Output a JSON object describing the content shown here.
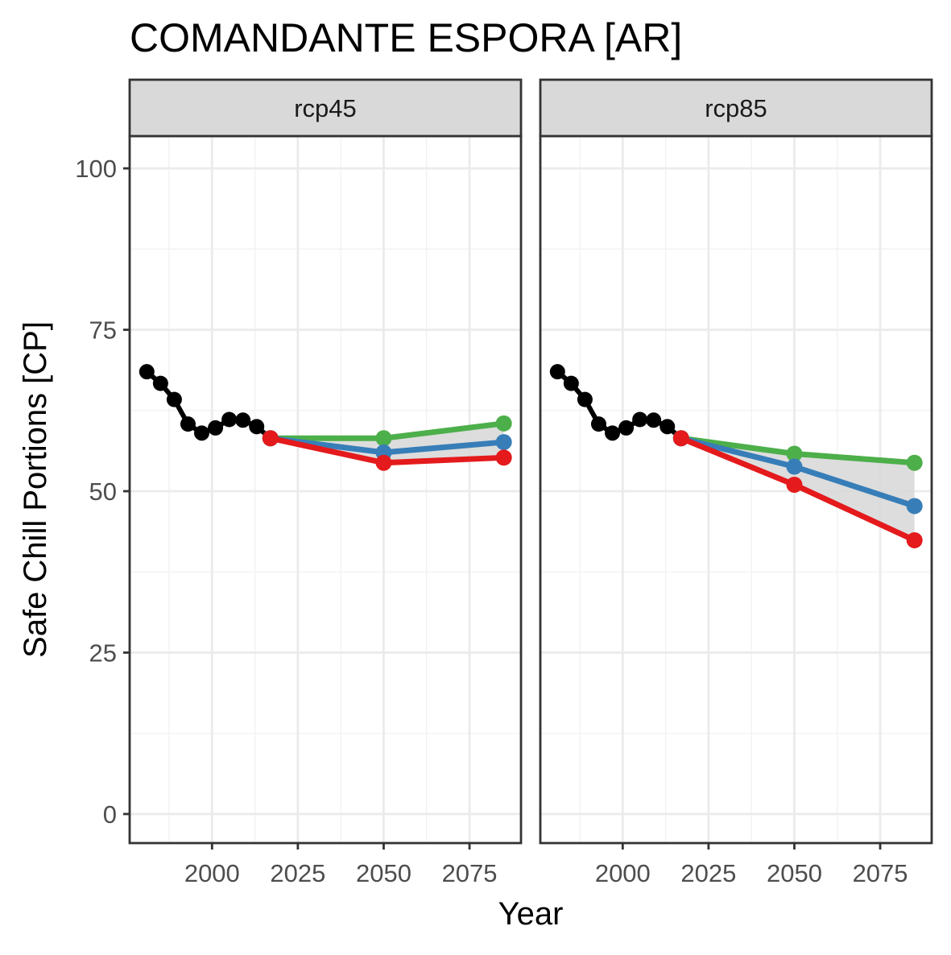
{
  "chart_data": {
    "type": "line",
    "title": "COMANDANTE ESPORA [AR]",
    "xlabel": "Year",
    "ylabel": "Safe Chill Portions [CP]",
    "xlim": [
      1976,
      2090
    ],
    "ylim": [
      -4.5,
      105
    ],
    "x_ticks": [
      2000,
      2025,
      2050,
      2075
    ],
    "x_tick_labels": [
      "2000",
      "2025",
      "2050",
      "2075"
    ],
    "y_ticks": [
      0,
      25,
      50,
      75,
      100
    ],
    "y_tick_labels": [
      "0",
      "25",
      "50",
      "75",
      "100"
    ],
    "grid": true,
    "legend": "none",
    "colors": {
      "historic": "#000000",
      "green": "#4daf4a",
      "blue": "#377eb8",
      "red": "#e41a1c",
      "ribbon": "#d9d9d9"
    },
    "panels": [
      {
        "label": "rcp45",
        "historic": {
          "x": [
            1981,
            1985,
            1989,
            1993,
            1997,
            2001,
            2005,
            2009,
            2013,
            2017
          ],
          "y": [
            68.5,
            66.7,
            64.2,
            60.4,
            59.0,
            59.8,
            61.1,
            61.0,
            60.0,
            58.2
          ]
        },
        "scenarios": [
          {
            "color": "green",
            "x": [
              2017,
              2050,
              2085
            ],
            "y": [
              58.2,
              58.2,
              60.5
            ]
          },
          {
            "color": "blue",
            "x": [
              2017,
              2050,
              2085
            ],
            "y": [
              58.2,
              56.0,
              57.6
            ]
          },
          {
            "color": "red",
            "x": [
              2017,
              2050,
              2085
            ],
            "y": [
              58.2,
              54.4,
              55.2
            ]
          }
        ],
        "ribbon": {
          "x": [
            2017,
            2050,
            2085
          ],
          "ymin": [
            58.2,
            54.4,
            55.2
          ],
          "ymax": [
            58.2,
            58.2,
            60.5
          ]
        }
      },
      {
        "label": "rcp85",
        "historic": {
          "x": [
            1981,
            1985,
            1989,
            1993,
            1997,
            2001,
            2005,
            2009,
            2013,
            2017
          ],
          "y": [
            68.5,
            66.7,
            64.2,
            60.4,
            59.0,
            59.8,
            61.1,
            61.0,
            60.0,
            58.2
          ]
        },
        "scenarios": [
          {
            "color": "green",
            "x": [
              2017,
              2050,
              2085
            ],
            "y": [
              58.2,
              55.8,
              54.4
            ]
          },
          {
            "color": "blue",
            "x": [
              2017,
              2050,
              2085
            ],
            "y": [
              58.2,
              53.8,
              47.7
            ]
          },
          {
            "color": "red",
            "x": [
              2017,
              2050,
              2085
            ],
            "y": [
              58.2,
              51.0,
              42.4
            ]
          }
        ],
        "ribbon": {
          "x": [
            2017,
            2050,
            2085
          ],
          "ymin": [
            58.2,
            51.0,
            42.4
          ],
          "ymax": [
            58.2,
            55.8,
            54.4
          ]
        }
      }
    ]
  }
}
